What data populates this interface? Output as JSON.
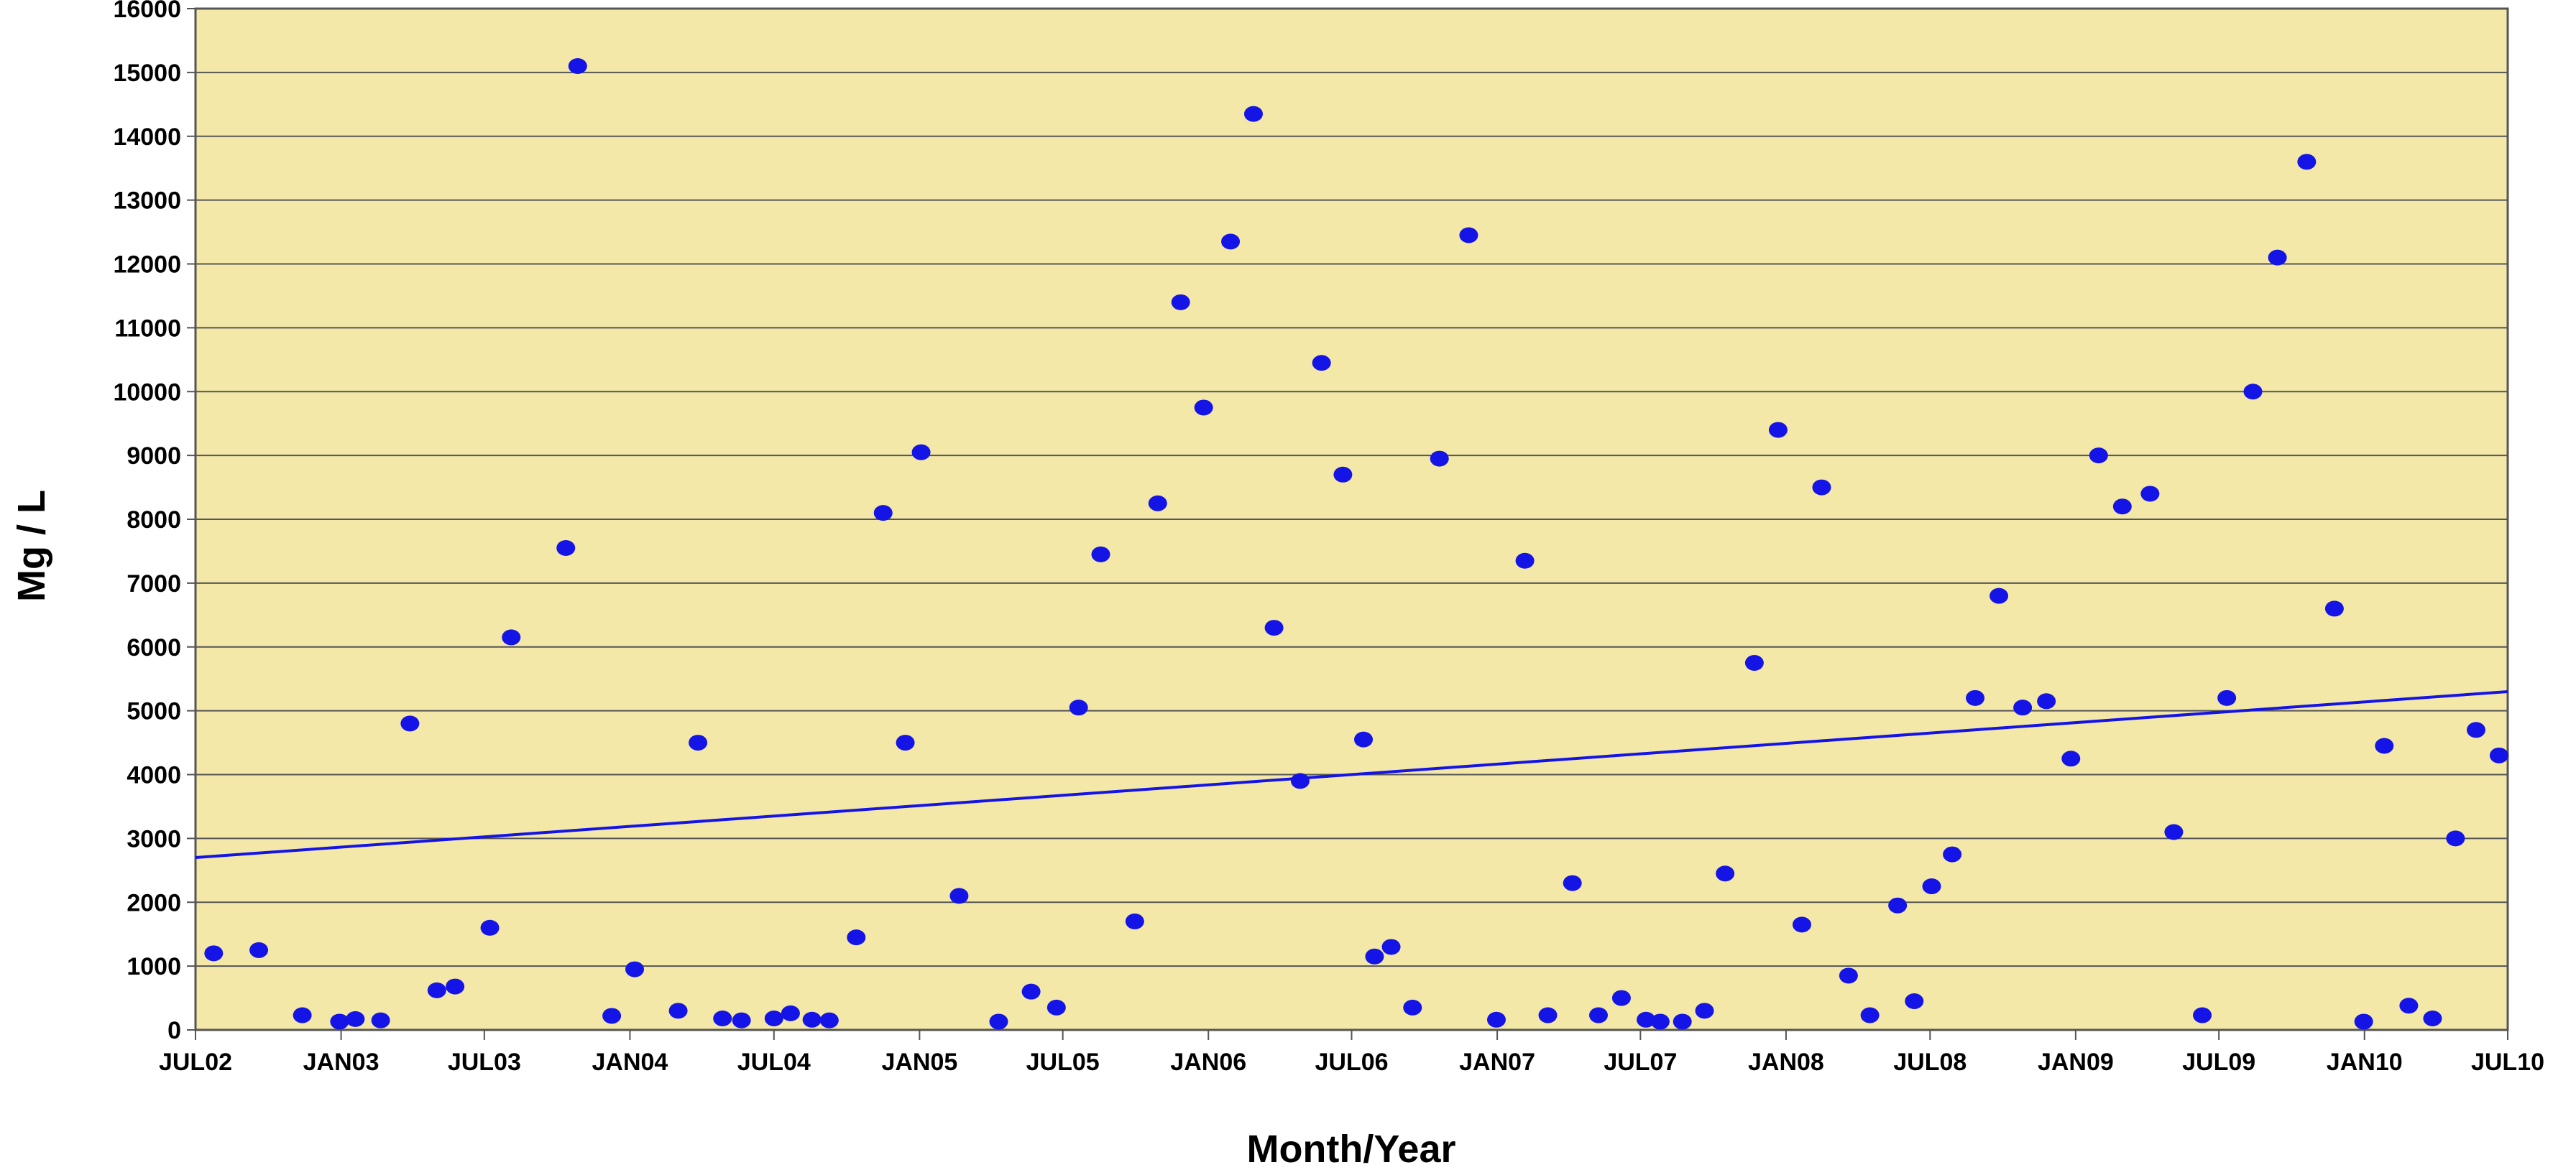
{
  "chart_data": {
    "type": "scatter",
    "xlabel": "Month/Year",
    "ylabel": "Mg / L",
    "ylim": [
      0,
      16000
    ],
    "xlim": [
      "2002-07-01",
      "2010-07-01"
    ],
    "grid": true,
    "x_ticks": [
      "JUL02",
      "JAN03",
      "JUL03",
      "JAN04",
      "JUL04",
      "JAN05",
      "JUL05",
      "JAN06",
      "JUL06",
      "JAN07",
      "JUL07",
      "JAN08",
      "JUL08",
      "JAN09",
      "JUL09",
      "JAN10",
      "JUL10"
    ],
    "y_ticks": [
      "0",
      "1000",
      "2000",
      "3000",
      "4000",
      "5000",
      "6000",
      "7000",
      "8000",
      "9000",
      "10000",
      "11000",
      "12000",
      "13000",
      "14000",
      "15000",
      "16000"
    ],
    "colors": {
      "plot_background": "#f3e8a8",
      "points": "#1414e6",
      "trendline": "#1414e6",
      "grid": "#555555"
    },
    "series": [
      {
        "type": "scatter",
        "x": [
          "2002-07-24",
          "2002-09-19",
          "2002-11-13",
          "2002-12-30",
          "2003-01-19",
          "2003-02-20",
          "2003-03-29",
          "2003-05-02",
          "2003-05-25",
          "2003-07-08",
          "2003-08-04",
          "2003-10-12",
          "2003-10-27",
          "2003-12-09",
          "2004-01-07",
          "2004-03-02",
          "2004-03-27",
          "2004-04-27",
          "2004-05-21",
          "2004-07-01",
          "2004-07-22",
          "2004-08-18",
          "2004-09-09",
          "2004-10-13",
          "2004-11-16",
          "2004-12-14",
          "2005-01-03",
          "2005-02-20",
          "2005-04-11",
          "2005-05-22",
          "2005-06-23",
          "2005-07-21",
          "2005-08-18",
          "2005-09-30",
          "2005-10-29",
          "2005-11-27",
          "2005-12-26",
          "2006-01-29",
          "2006-02-27",
          "2006-03-25",
          "2006-04-27",
          "2006-05-24",
          "2006-06-20",
          "2006-07-16",
          "2006-07-30",
          "2006-08-20",
          "2006-09-16",
          "2006-10-20",
          "2006-11-26",
          "2006-12-31",
          "2007-02-05",
          "2007-03-06",
          "2007-04-06",
          "2007-05-09",
          "2007-06-07",
          "2007-07-08",
          "2007-07-26",
          "2007-08-23",
          "2007-09-20",
          "2007-10-16",
          "2007-11-22",
          "2007-12-22",
          "2008-01-21",
          "2008-02-15",
          "2008-03-20",
          "2008-04-16",
          "2008-05-21",
          "2008-06-11",
          "2008-07-03",
          "2008-07-29",
          "2008-08-27",
          "2008-09-26",
          "2008-10-26",
          "2008-11-25",
          "2008-12-26",
          "2009-01-30",
          "2009-03-01",
          "2009-04-05",
          "2009-05-05",
          "2009-06-10",
          "2009-07-11",
          "2009-08-13",
          "2009-09-13",
          "2009-10-20",
          "2009-11-24",
          "2009-12-31",
          "2010-01-26",
          "2010-02-26",
          "2010-03-28",
          "2010-04-26",
          "2010-05-22",
          "2010-06-20"
        ],
        "y": [
          1200,
          1250,
          230,
          130,
          170,
          150,
          4800,
          620,
          680,
          1600,
          6150,
          7550,
          15100,
          220,
          950,
          300,
          4500,
          180,
          150,
          180,
          260,
          160,
          150,
          1450,
          8100,
          4500,
          9050,
          2100,
          130,
          600,
          350,
          5050,
          7450,
          1700,
          8250,
          11400,
          9750,
          12350,
          14350,
          6300,
          3900,
          10450,
          8700,
          4550,
          1150,
          1300,
          350,
          8950,
          12450,
          160,
          7350,
          230,
          2300,
          230,
          500,
          160,
          130,
          130,
          300,
          2450,
          5750,
          9400,
          1650,
          8500,
          850,
          230,
          1950,
          450,
          2250,
          2750,
          5200,
          6800,
          5050,
          5150,
          4250,
          9000,
          8200,
          8400,
          3100,
          230,
          5200,
          10000,
          12100,
          13600,
          6600,
          130,
          4450,
          380,
          180,
          3000,
          4700,
          4300
        ]
      }
    ],
    "trendline": {
      "x": [
        "2002-07-01",
        "2010-07-01"
      ],
      "y": [
        2700,
        5300
      ]
    }
  }
}
